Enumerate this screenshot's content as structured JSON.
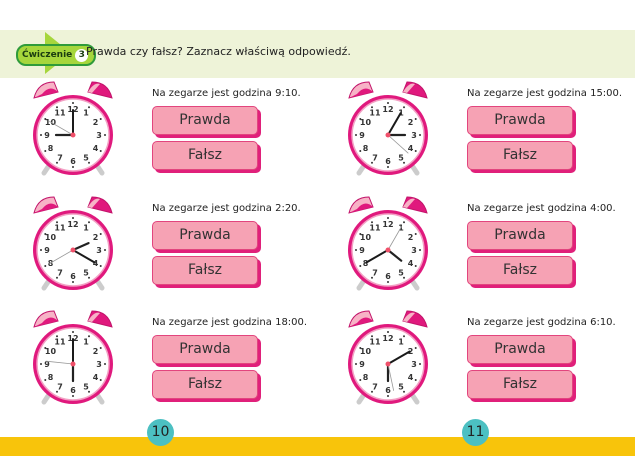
{
  "header": {
    "exercise_label": "Ćwiczenie",
    "exercise_number": "3",
    "instruction": "Prawda czy fałsz? Zaznacz właściwą odpowiedź."
  },
  "buttons": {
    "true_label": "Prawda",
    "false_label": "Fałsz"
  },
  "items": [
    {
      "question": "Na zegarze jest godzina 9:10.",
      "hands": {
        "hour": 9,
        "minute": 0,
        "second": 50
      }
    },
    {
      "question": "Na zegarze jest godzina 2:20.",
      "hands": {
        "hour": 2.2,
        "minute": 20,
        "second": 40
      }
    },
    {
      "question": "Na zegarze jest godzina 18:00.",
      "hands": {
        "hour": 6,
        "minute": 0,
        "second": 46
      }
    },
    {
      "question": "Na zegarze jest godzina 15:00.",
      "hands": {
        "hour": 3,
        "minute": 5,
        "second": 22
      }
    },
    {
      "question": "Na zegarze jest godzina 4:00.",
      "hands": {
        "hour": 4.3,
        "minute": 40,
        "second": 5
      }
    },
    {
      "question": "Na zegarze jest godzina 6:10.",
      "hands": {
        "hour": 6,
        "minute": 10,
        "second": 28
      }
    }
  ],
  "page_numbers": [
    "10",
    "11"
  ],
  "colors": {
    "clock_rim": "#e0197d",
    "button": "#f6a2b4",
    "page_circle": "#4cc0c2",
    "footer": "#f8c40b",
    "band": "#eef3d8"
  }
}
